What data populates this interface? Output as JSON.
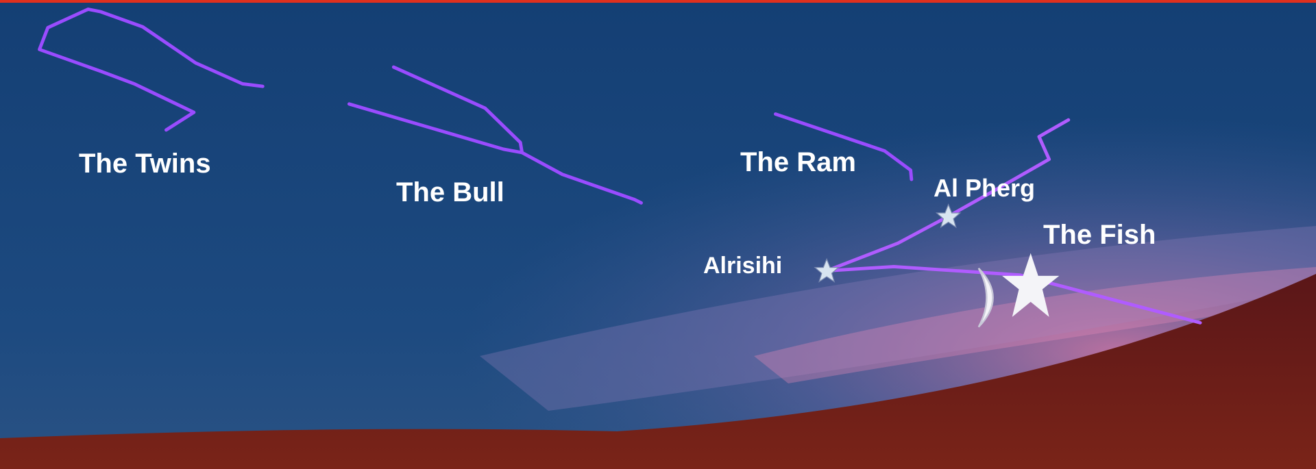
{
  "labels": {
    "twins": "The Twins",
    "bull": "The Bull",
    "ram": "The Ram",
    "al_pherg": "Al Pherg",
    "fish": "The Fish",
    "alrisihi": "Alrisihi"
  }
}
